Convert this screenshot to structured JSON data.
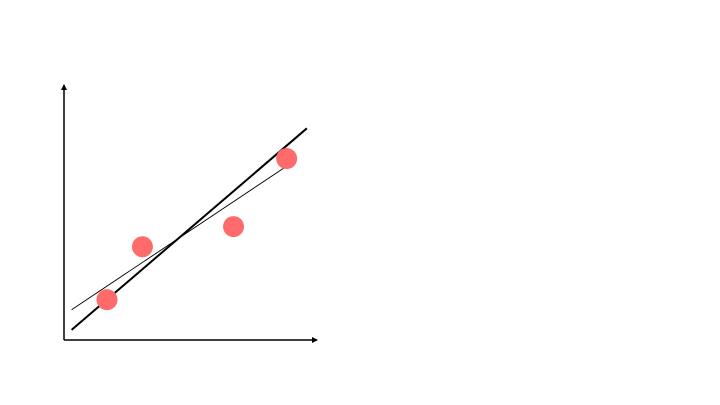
{
  "chart_data": {
    "type": "scatter",
    "title": "",
    "xlabel": "",
    "ylabel": "",
    "grid": false,
    "xlim": [
      0,
      10
    ],
    "ylim": [
      0,
      10
    ],
    "points": [
      {
        "x": 1.7,
        "y": 1.6
      },
      {
        "x": 3.1,
        "y": 3.7
      },
      {
        "x": 6.7,
        "y": 4.5
      },
      {
        "x": 8.8,
        "y": 7.2
      }
    ],
    "lines": [
      {
        "style": "thick",
        "from": {
          "x": 0.3,
          "y": 0.4
        },
        "to": {
          "x": 9.6,
          "y": 8.4
        }
      },
      {
        "style": "thin",
        "from": {
          "x": 0.3,
          "y": 1.2
        },
        "to": {
          "x": 9.1,
          "y": 7.1
        }
      }
    ],
    "colors": {
      "point": "#ff6b6b",
      "line": "#000000",
      "axis": "#000000"
    }
  }
}
